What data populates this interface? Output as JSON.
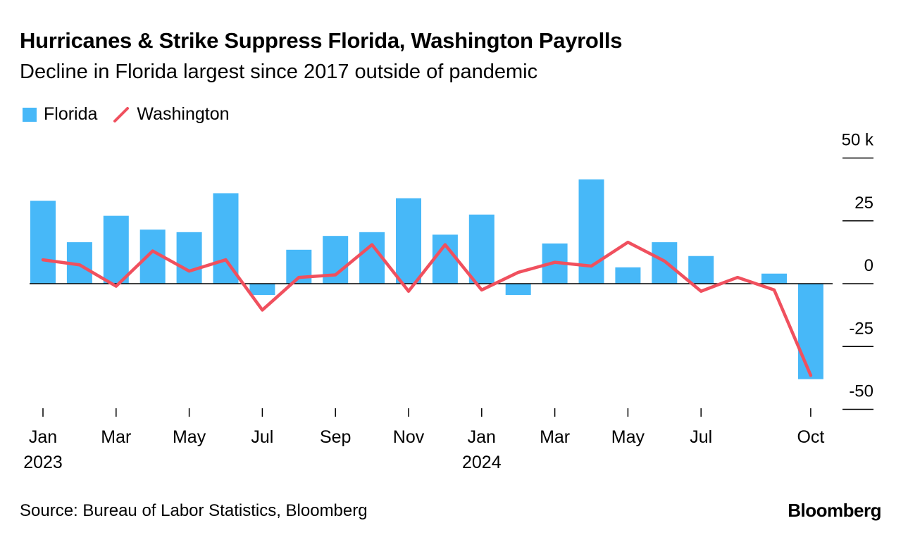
{
  "header": {
    "title": "Hurricanes & Strike Suppress Florida, Washington Payrolls",
    "subtitle": "Decline in Florida largest since 2017 outside of pandemic"
  },
  "legend": {
    "florida_label": "Florida",
    "washington_label": "Washington"
  },
  "footer": {
    "source": "Source: Bureau of Labor Statistics, Bloomberg",
    "brand": "Bloomberg"
  },
  "colors": {
    "florida": "#47B8F8",
    "washington": "#F0505E",
    "axis": "#000000"
  },
  "chart_data": {
    "type": "bar",
    "title": "Hurricanes & Strike Suppress Florida, Washington Payrolls",
    "subtitle": "Decline in Florida largest since 2017 outside of pandemic",
    "ylabel": "",
    "xlabel": "",
    "ylim": [
      -50,
      50
    ],
    "y_ticks": [
      50,
      25,
      0,
      -25,
      -50
    ],
    "y_tick_labels": [
      "50 k",
      "25",
      "0",
      "-25",
      "-50"
    ],
    "categories": [
      "Jan 2023",
      "Feb 2023",
      "Mar 2023",
      "Apr 2023",
      "May 2023",
      "Jun 2023",
      "Jul 2023",
      "Aug 2023",
      "Sep 2023",
      "Oct 2023",
      "Nov 2023",
      "Dec 2023",
      "Jan 2024",
      "Feb 2024",
      "Mar 2024",
      "Apr 2024",
      "May 2024",
      "Jun 2024",
      "Jul 2024",
      "Aug 2024",
      "Sep 2024",
      "Oct 2024"
    ],
    "x_ticks": [
      {
        "index": 0,
        "label": "Jan",
        "year": "2023"
      },
      {
        "index": 2,
        "label": "Mar",
        "year": ""
      },
      {
        "index": 4,
        "label": "May",
        "year": ""
      },
      {
        "index": 6,
        "label": "Jul",
        "year": ""
      },
      {
        "index": 8,
        "label": "Sep",
        "year": ""
      },
      {
        "index": 10,
        "label": "Nov",
        "year": ""
      },
      {
        "index": 12,
        "label": "Jan",
        "year": "2024"
      },
      {
        "index": 14,
        "label": "Mar",
        "year": ""
      },
      {
        "index": 16,
        "label": "May",
        "year": ""
      },
      {
        "index": 18,
        "label": "Jul",
        "year": ""
      },
      {
        "index": 21,
        "label": "Oct",
        "year": ""
      }
    ],
    "series": [
      {
        "name": "Florida",
        "type": "bar",
        "values": [
          33,
          16.5,
          27,
          21.5,
          20.5,
          36,
          -4.5,
          13.5,
          19,
          20.5,
          34,
          19.5,
          27.5,
          -4.5,
          16,
          41.5,
          6.5,
          16.5,
          11,
          0,
          4,
          -38
        ]
      },
      {
        "name": "Washington",
        "type": "line",
        "values": [
          9.5,
          7.5,
          -1,
          13,
          5,
          9.5,
          -10.5,
          2.5,
          3.5,
          15.5,
          -3,
          15.5,
          -2.5,
          4.5,
          8.5,
          7,
          16.5,
          9,
          -3,
          2.5,
          -2.5,
          -36.5
        ]
      }
    ]
  }
}
